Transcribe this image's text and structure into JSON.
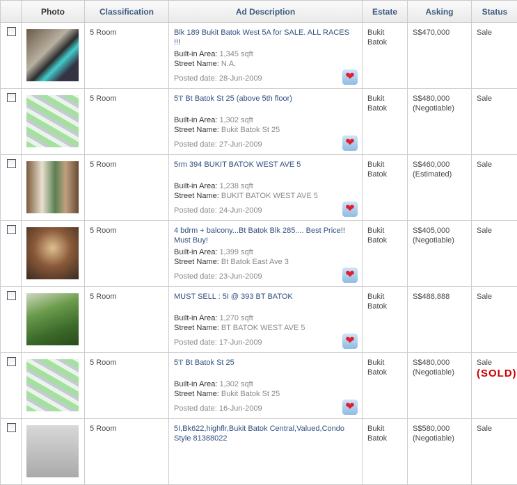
{
  "headers": [
    "",
    "Photo",
    "Classification",
    "Ad Description",
    "Estate",
    "Asking",
    "Status"
  ],
  "labels": {
    "area": "Built-in Area:",
    "street": "Street Name:"
  },
  "rows": [
    {
      "photo": "img1",
      "classification": "5 Room",
      "title": "Blk 189 Bukit Batok West 5A for SALE. ALL RACES !!!",
      "area": "1,345 sqft",
      "street": "N.A.",
      "posted": "Posted date: 28-Jun-2009",
      "estate": "Bukit Batok",
      "asking": "S$470,000",
      "asking_note": "",
      "status": "Sale",
      "sold": ""
    },
    {
      "photo": "img2",
      "classification": "5 Room",
      "title": "5'I' Bt Batok St 25 (above 5th floor)",
      "area": "1,302 sqft",
      "street": "Bukit Batok St 25",
      "posted": "Posted date: 27-Jun-2009",
      "estate": "Bukit Batok",
      "asking": "S$480,000",
      "asking_note": "(Negotiable)",
      "status": "Sale",
      "sold": ""
    },
    {
      "photo": "img3",
      "classification": "5 Room",
      "title": "5rm 394 BUKIT BATOK WEST AVE 5",
      "area": "1,238 sqft",
      "street": "BUKIT BATOK WEST AVE 5",
      "posted": "Posted date: 24-Jun-2009",
      "estate": "Bukit Batok",
      "asking": "S$460,000",
      "asking_note": "(Estimated)",
      "status": "Sale",
      "sold": ""
    },
    {
      "photo": "img4",
      "classification": "5 Room",
      "title": "4 bdrm + balcony...Bt Batok Blk 285.... Best Price!! Must Buy!",
      "area": "1,399 sqft",
      "street": "Bt Batok East Ave 3",
      "posted": "Posted date: 23-Jun-2009",
      "estate": "Bukit Batok",
      "asking": "S$405,000",
      "asking_note": "(Negotiable)",
      "status": "Sale",
      "sold": ""
    },
    {
      "photo": "img5",
      "classification": "5 Room",
      "title": "MUST SELL : 5I @ 393 BT BATOK",
      "area": "1,270 sqft",
      "street": "BT BATOK WEST AVE 5",
      "posted": "Posted date: 17-Jun-2009",
      "estate": "Bukit Batok",
      "asking": "S$488,888",
      "asking_note": "",
      "status": "Sale",
      "sold": ""
    },
    {
      "photo": "img2",
      "classification": "5 Room",
      "title": "5'I' Bt Batok St 25",
      "area": "1,302 sqft",
      "street": "Bukit Batok St 25",
      "posted": "Posted date: 16-Jun-2009",
      "estate": "Bukit Batok",
      "asking": "S$480,000",
      "asking_note": "(Negotiable)",
      "status": "Sale",
      "sold": "(SOLD)"
    },
    {
      "photo": "img6",
      "classification": "5 Room",
      "title": "5I,Bk622,highflr,Bukit Batok Central,Valued,Condo Style 81388022",
      "area": "",
      "street": "",
      "posted": "",
      "estate": "Bukit Batok",
      "asking": "S$580,000",
      "asking_note": "(Negotiable)",
      "status": "Sale",
      "sold": ""
    }
  ]
}
